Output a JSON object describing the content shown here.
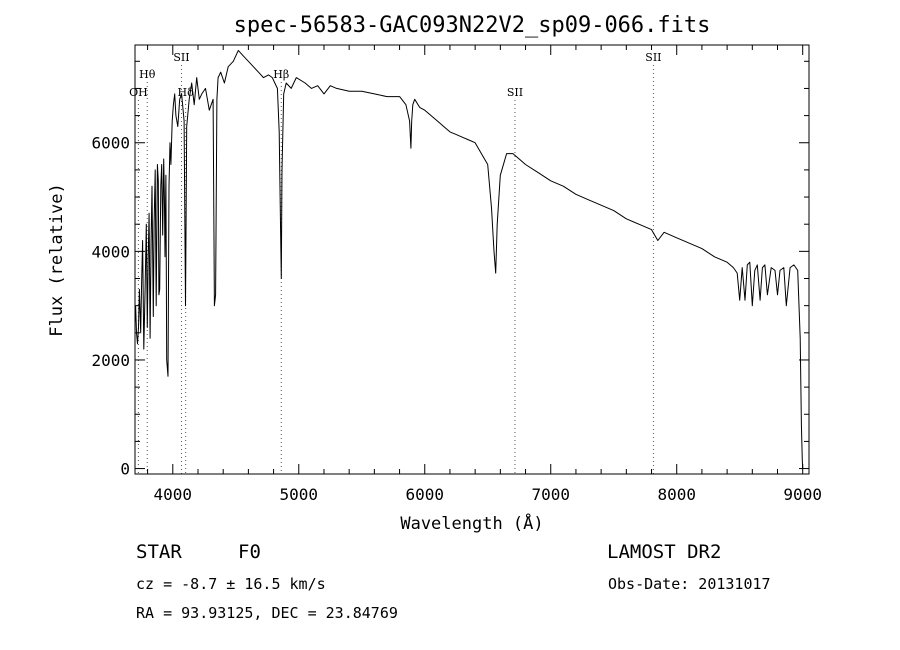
{
  "chart_data": {
    "type": "line",
    "title": "spec-56583-GAC093N22V2_sp09-066.fits",
    "xlabel": "Wavelength (Å)",
    "ylabel": "Flux (relative)",
    "xlim": [
      3700,
      9050
    ],
    "ylim": [
      -100,
      7800
    ],
    "xticks": [
      4000,
      5000,
      6000,
      7000,
      8000,
      9000
    ],
    "yticks": [
      0,
      2000,
      4000,
      6000
    ],
    "grid": false,
    "line_color": "#000000",
    "series": [
      {
        "x": [
          3700,
          3705,
          3712,
          3720,
          3728,
          3735,
          3745,
          3752,
          3760,
          3770,
          3780,
          3790,
          3798,
          3805,
          3812,
          3820,
          3828,
          3835,
          3845,
          3852,
          3860,
          3868,
          3878,
          3885,
          3890,
          3896,
          3905,
          3912,
          3920,
          3928,
          3933,
          3938,
          3945,
          3952,
          3962,
          3970,
          3978,
          3985,
          3995,
          4005,
          4015,
          4025,
          4040,
          4055,
          4070,
          4090,
          4101,
          4110,
          4130,
          4150,
          4170,
          4190,
          4210,
          4230,
          4260,
          4290,
          4320,
          4330,
          4340,
          4350,
          4360,
          4380,
          4410,
          4440,
          4480,
          4520,
          4560,
          4600,
          4640,
          4680,
          4720,
          4760,
          4790,
          4810,
          4830,
          4845,
          4855,
          4861,
          4867,
          4880,
          4900,
          4940,
          4980,
          5050,
          5100,
          5150,
          5200,
          5250,
          5300,
          5400,
          5500,
          5600,
          5700,
          5800,
          5850,
          5880,
          5890,
          5896,
          5905,
          5920,
          5960,
          6000,
          6050,
          6100,
          6150,
          6200,
          6250,
          6300,
          6350,
          6400,
          6450,
          6500,
          6530,
          6550,
          6563,
          6575,
          6600,
          6650,
          6700,
          6750,
          6800,
          6900,
          7000,
          7100,
          7200,
          7300,
          7400,
          7500,
          7600,
          7700,
          7800,
          7850,
          7900,
          8000,
          8100,
          8200,
          8300,
          8400,
          8450,
          8480,
          8500,
          8520,
          8542,
          8560,
          8580,
          8600,
          8620,
          8640,
          8662,
          8680,
          8700,
          8720,
          8750,
          8780,
          8800,
          8820,
          8850,
          8870,
          8900,
          8930,
          8960,
          8980,
          8990,
          8997,
          9000
        ],
        "y": [
          2700,
          3000,
          2500,
          2300,
          2600,
          3300,
          2500,
          3400,
          4200,
          2200,
          3300,
          4500,
          2600,
          3900,
          4700,
          2400,
          4200,
          5200,
          2800,
          4500,
          5500,
          3000,
          5600,
          5300,
          3200,
          3300,
          5200,
          5600,
          4300,
          5700,
          5000,
          3900,
          5400,
          2000,
          1700,
          5200,
          6000,
          5600,
          6400,
          6700,
          6900,
          6500,
          6300,
          6800,
          6900,
          6400,
          3000,
          6300,
          6800,
          7100,
          6700,
          7200,
          6800,
          6900,
          7000,
          6600,
          6800,
          3000,
          3200,
          6800,
          7200,
          7300,
          7100,
          7400,
          7500,
          7700,
          7600,
          7500,
          7400,
          7300,
          7200,
          7250,
          7200,
          7100,
          7000,
          6200,
          4500,
          3500,
          5500,
          6900,
          7100,
          7000,
          7200,
          7100,
          7000,
          7050,
          6900,
          7050,
          7000,
          6950,
          6950,
          6900,
          6850,
          6850,
          6700,
          6400,
          5900,
          6400,
          6700,
          6800,
          6650,
          6600,
          6500,
          6400,
          6300,
          6200,
          6150,
          6100,
          6050,
          6000,
          5800,
          5600,
          4800,
          4000,
          3600,
          4500,
          5400,
          5800,
          5800,
          5700,
          5600,
          5450,
          5300,
          5200,
          5050,
          4950,
          4850,
          4750,
          4600,
          4500,
          4400,
          4200,
          4350,
          4250,
          4150,
          4050,
          3900,
          3800,
          3700,
          3600,
          3100,
          3700,
          3100,
          3750,
          3800,
          3000,
          3650,
          3750,
          3100,
          3700,
          3750,
          3200,
          3700,
          3650,
          3200,
          3650,
          3700,
          3000,
          3700,
          3750,
          3650,
          2400,
          800,
          150,
          0
        ]
      }
    ],
    "annotations": [
      {
        "label": "OH",
        "x": 3727,
        "level": "low"
      },
      {
        "label": "Hθ",
        "x": 3797,
        "level": "mid"
      },
      {
        "label": "SII",
        "x": 4069,
        "level": "top"
      },
      {
        "label": "Hδ",
        "x": 4102,
        "level": "low"
      },
      {
        "label": "Hβ",
        "x": 4861,
        "level": "mid"
      },
      {
        "label": "SII",
        "x": 6716,
        "level": "low"
      },
      {
        "label": "SII",
        "x": 7815,
        "level": "top"
      }
    ]
  },
  "info": {
    "class_label": "STAR",
    "subclass": "F0",
    "survey": "LAMOST DR2",
    "redshift_line": "cz = -8.7 ± 16.5 km/s",
    "obs_date": "Obs-Date: 20131017",
    "coords": "RA =  93.93125, DEC =  23.84769"
  }
}
